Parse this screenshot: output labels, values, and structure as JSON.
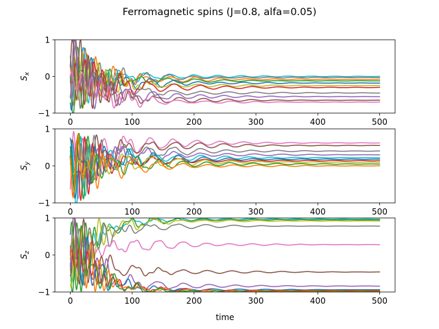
{
  "figure": {
    "title": "Ferromagnetic spins (J=0.8, alfa=0.05)",
    "xlabel": "time"
  },
  "palette": [
    "#1f77b4",
    "#ff7f0e",
    "#2ca02c",
    "#d62728",
    "#9467bd",
    "#8c564b",
    "#e377c2",
    "#7f7f7f",
    "#bcbd22",
    "#17becf"
  ],
  "chart_data": [
    {
      "type": "line",
      "name": "Sx",
      "ylabel_base": "S",
      "ylabel_sub": "x",
      "xlim": [
        -25,
        525
      ],
      "ylim": [
        -1,
        1
      ],
      "xticks": [
        0,
        100,
        200,
        300,
        400,
        500
      ],
      "yticks": [
        -1,
        0,
        1
      ],
      "settle_start": 60,
      "transient_amp": 0.95,
      "series": [
        {
          "final": 0.0,
          "osc": 0.2,
          "color_index": 9
        },
        {
          "final": -0.03,
          "osc": 0.18,
          "color_index": 7
        },
        {
          "final": -0.08,
          "osc": 0.22,
          "color_index": 1
        },
        {
          "final": -0.12,
          "osc": 0.16,
          "color_index": 2
        },
        {
          "final": -0.18,
          "osc": 0.2,
          "color_index": 0
        },
        {
          "final": -0.25,
          "osc": 0.18,
          "color_index": 8
        },
        {
          "final": -0.3,
          "osc": 0.22,
          "color_index": 3
        },
        {
          "final": -0.45,
          "osc": 0.24,
          "color_index": 7
        },
        {
          "final": -0.55,
          "osc": 0.22,
          "color_index": 4
        },
        {
          "final": -0.65,
          "osc": 0.2,
          "color_index": 5
        },
        {
          "final": -0.7,
          "osc": 0.18,
          "color_index": 6
        }
      ]
    },
    {
      "type": "line",
      "name": "Sy",
      "ylabel_base": "S",
      "ylabel_sub": "y",
      "xlim": [
        -25,
        525
      ],
      "ylim": [
        -1,
        1
      ],
      "xticks": [
        0,
        100,
        200,
        300,
        400,
        500
      ],
      "yticks": [
        -1,
        0,
        1
      ],
      "settle_start": 60,
      "transient_amp": 0.95,
      "series": [
        {
          "final": 0.62,
          "osc": 0.3,
          "color_index": 6
        },
        {
          "final": 0.55,
          "osc": 0.3,
          "color_index": 5
        },
        {
          "final": 0.4,
          "osc": 0.3,
          "color_index": 7
        },
        {
          "final": 0.3,
          "osc": 0.28,
          "color_index": 4
        },
        {
          "final": 0.22,
          "osc": 0.28,
          "color_index": 9
        },
        {
          "final": 0.18,
          "osc": 0.28,
          "color_index": 0
        },
        {
          "final": 0.14,
          "osc": 0.28,
          "color_index": 3
        },
        {
          "final": 0.1,
          "osc": 0.28,
          "color_index": 8
        },
        {
          "final": 0.05,
          "osc": 0.28,
          "color_index": 2
        },
        {
          "final": 0.0,
          "osc": 0.26,
          "color_index": 1
        }
      ]
    },
    {
      "type": "line",
      "name": "Sz",
      "ylabel_base": "S",
      "ylabel_sub": "z",
      "xlim": [
        -25,
        525
      ],
      "ylim": [
        -1,
        1
      ],
      "xticks": [
        0,
        100,
        200,
        300,
        400,
        500
      ],
      "yticks": [
        -1,
        0,
        1
      ],
      "settle_start": 60,
      "transient_amp": 0.95,
      "series": [
        {
          "final": 0.97,
          "osc": 0.15,
          "color_index": 9
        },
        {
          "final": 0.95,
          "osc": 0.15,
          "color_index": 2
        },
        {
          "final": 0.92,
          "osc": 0.15,
          "color_index": 8
        },
        {
          "final": 0.78,
          "osc": 0.18,
          "color_index": 7
        },
        {
          "final": 0.28,
          "osc": 0.25,
          "color_index": 6
        },
        {
          "final": -0.46,
          "osc": 0.25,
          "color_index": 5
        },
        {
          "final": -0.84,
          "osc": 0.18,
          "color_index": 4
        },
        {
          "final": -0.94,
          "osc": 0.14,
          "color_index": 0
        },
        {
          "final": -0.96,
          "osc": 0.12,
          "color_index": 3
        },
        {
          "final": -0.98,
          "osc": 0.12,
          "color_index": 1
        },
        {
          "final": -0.99,
          "osc": 0.1,
          "color_index": 2
        }
      ]
    }
  ]
}
